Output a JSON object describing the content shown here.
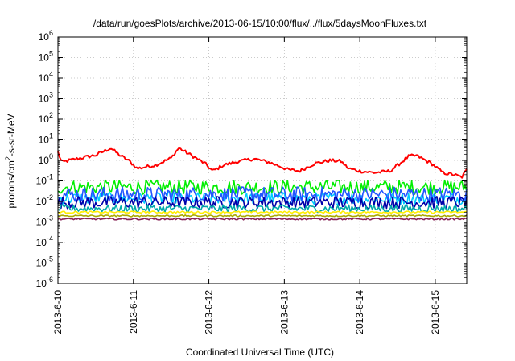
{
  "chart_data": {
    "type": "line",
    "title": "/data/run/goesPlots/archive/2013-06-15/10:00/flux/../flux/5daysMoonFluxes.txt",
    "xlabel": "Coordinated Universal Time (UTC)",
    "ylabel_parts": {
      "base": "protons/cm",
      "sup": "2",
      "rest": "-s-sr-MeV"
    },
    "y_scale": "log",
    "ylim": [
      1e-06,
      1000000.0
    ],
    "y_tick_exponents": [
      -6,
      -5,
      -4,
      -3,
      -2,
      -1,
      0,
      1,
      2,
      3,
      4,
      5,
      6
    ],
    "y_tick_base": "10",
    "xlim": [
      "2013-06-10T00:00",
      "2013-06-15T10:00"
    ],
    "x_tick_labels": [
      "2013-6-10",
      "2013-6-11",
      "2013-6-12",
      "2013-6-13",
      "2013-6-14",
      "2013-6-15"
    ],
    "grid": true,
    "legend": "none",
    "series_style": "noisy",
    "series": [
      {
        "color": "#ff0000",
        "x_days": [
          0,
          0.05,
          0.15,
          0.3,
          0.5,
          0.7,
          0.8,
          0.95,
          1.05,
          1.3,
          1.5,
          1.6,
          1.8,
          1.95,
          2.05,
          2.2,
          2.4,
          2.6,
          2.8,
          2.95,
          3.05,
          3.2,
          3.4,
          3.6,
          3.75,
          3.85,
          4.0,
          4.2,
          4.4,
          4.55,
          4.65,
          4.75,
          4.85,
          4.95,
          5.1,
          5.25,
          5.35,
          5.42
        ],
        "y_values": [
          2.5,
          0.8,
          1.0,
          1.3,
          1.8,
          4.0,
          2.0,
          0.9,
          0.4,
          0.6,
          1.3,
          4.0,
          1.5,
          0.7,
          0.3,
          0.6,
          0.9,
          1.2,
          0.8,
          0.5,
          0.35,
          0.3,
          0.7,
          1.0,
          0.9,
          0.4,
          0.3,
          0.25,
          0.3,
          0.8,
          1.6,
          1.7,
          1.1,
          0.7,
          0.25,
          0.2,
          0.15,
          0.35
        ],
        "noise": 0.08
      },
      {
        "color": "#00ee00",
        "x_days": [
          0,
          5.42
        ],
        "y_values": [
          0.05,
          0.05
        ],
        "noise": 0.35
      },
      {
        "color": "#00ccff",
        "x_days": [
          0,
          5.42
        ],
        "y_values": [
          0.014,
          0.014
        ],
        "noise": 0.3
      },
      {
        "color": "#2255ff",
        "x_days": [
          0,
          5.42
        ],
        "y_values": [
          0.022,
          0.022
        ],
        "noise": 0.38
      },
      {
        "color": "#0000aa",
        "x_days": [
          0,
          5.42
        ],
        "y_values": [
          0.009,
          0.009
        ],
        "noise": 0.3
      },
      {
        "color": "#00aaaa",
        "x_days": [
          0,
          5.42
        ],
        "y_values": [
          0.0045,
          0.0045
        ],
        "noise": 0.18
      },
      {
        "color": "#ffee00",
        "x_days": [
          0,
          5.42
        ],
        "y_values": [
          0.003,
          0.003
        ],
        "noise": 0.05
      },
      {
        "color": "#aaaa00",
        "x_days": [
          0,
          5.42
        ],
        "y_values": [
          0.002,
          0.002
        ],
        "noise": 0.04
      },
      {
        "color": "#882255",
        "x_days": [
          0,
          5.42
        ],
        "y_values": [
          0.0014,
          0.0014
        ],
        "noise": 0.04
      }
    ]
  }
}
